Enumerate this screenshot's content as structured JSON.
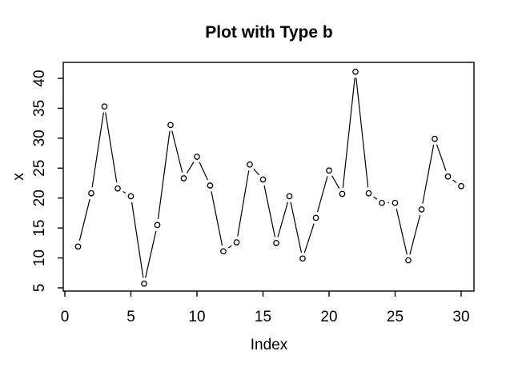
{
  "figure": {
    "background": "#ffffff",
    "foreground": "#000000"
  },
  "chart_data": {
    "type": "line",
    "style": "r-base-type-b",
    "marker": "open-circle",
    "title": "Plot with Type b",
    "xlabel": "Index",
    "ylabel": "x",
    "x": [
      1,
      2,
      3,
      4,
      5,
      6,
      7,
      8,
      9,
      10,
      11,
      12,
      13,
      14,
      15,
      16,
      17,
      18,
      19,
      20,
      21,
      22,
      23,
      24,
      25,
      26,
      27,
      28,
      29,
      30
    ],
    "values": [
      11.9,
      20.8,
      35.3,
      21.6,
      20.3,
      5.7,
      15.5,
      32.2,
      23.3,
      26.9,
      22.1,
      11.1,
      12.6,
      25.6,
      23.1,
      12.5,
      20.3,
      9.9,
      16.7,
      24.6,
      20.7,
      41.1,
      20.8,
      19.2,
      19.2,
      9.6,
      18.1,
      29.9,
      23.6,
      22.0
    ],
    "xticks": [
      0,
      5,
      10,
      15,
      20,
      25,
      30
    ],
    "yticks": [
      5,
      10,
      15,
      20,
      25,
      30,
      35,
      40
    ],
    "xlim": [
      -0.16,
      31.16
    ],
    "ylim": [
      4.0,
      42.5
    ],
    "grid": false,
    "legend_position": "none",
    "line_color": "#000000",
    "background": "#ffffff"
  }
}
